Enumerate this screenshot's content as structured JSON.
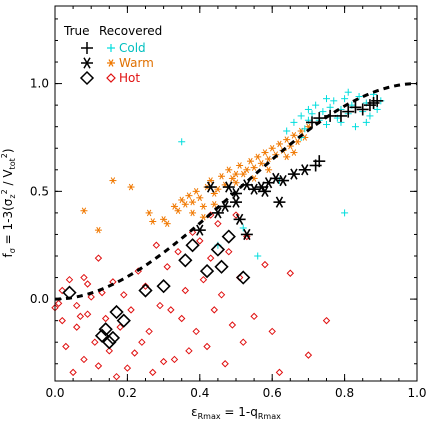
{
  "chart_data": {
    "type": "scatter",
    "xlabel": {
      "eps": "ε",
      "eps_sub": "Rmax",
      "rest": " = 1-q",
      "q_sub": "Rmax"
    },
    "ylabel": {
      "f": "f",
      "f_sub": "σ",
      "rest1": " = 1-3(σ",
      "z_sub": "z",
      "z_sup": "2",
      "rest2": " / V",
      "tot_sub": "tot",
      "tot_sup": "2",
      "rest3": ")"
    },
    "xlim": [
      0.0,
      1.0
    ],
    "ylim": [
      -0.38,
      1.36
    ],
    "xticks": [
      "0.0",
      "0.2",
      "0.4",
      "0.6",
      "0.8",
      "1.0"
    ],
    "yticks": [
      "0.0",
      "0.5",
      "1.0"
    ],
    "xtick_values": [
      0.0,
      0.2,
      0.4,
      0.6,
      0.8,
      1.0
    ],
    "ytick_values": [
      0.0,
      0.5,
      1.0
    ],
    "legend": {
      "header_true": "True",
      "header_recovered": "Recovered",
      "entries": [
        {
          "label": "Cold",
          "color": "#00dddd"
        },
        {
          "label": "Warm",
          "color": "#f07800"
        },
        {
          "label": "Hot",
          "color": "#e01010"
        }
      ]
    },
    "curve": {
      "style": "dashed",
      "color": "#000000"
    },
    "series": [
      {
        "name": "Cold",
        "role": "true",
        "marker": "plus",
        "color": "#000000",
        "points": [
          [
            0.71,
            0.82
          ],
          [
            0.73,
            0.84
          ],
          [
            0.76,
            0.85
          ],
          [
            0.79,
            0.85
          ],
          [
            0.81,
            0.87
          ],
          [
            0.83,
            0.89
          ],
          [
            0.85,
            0.88
          ],
          [
            0.87,
            0.9
          ],
          [
            0.88,
            0.91
          ],
          [
            0.89,
            0.92
          ],
          [
            0.72,
            0.62
          ],
          [
            0.73,
            0.64
          ]
        ]
      },
      {
        "name": "Cold",
        "role": "recovered",
        "marker": "plus",
        "color": "#00dddd",
        "points": [
          [
            0.35,
            0.73
          ],
          [
            0.64,
            0.78
          ],
          [
            0.66,
            0.82
          ],
          [
            0.68,
            0.85
          ],
          [
            0.69,
            0.79
          ],
          [
            0.7,
            0.88
          ],
          [
            0.71,
            0.86
          ],
          [
            0.72,
            0.9
          ],
          [
            0.73,
            0.83
          ],
          [
            0.74,
            0.87
          ],
          [
            0.75,
            0.81
          ],
          [
            0.76,
            0.89
          ],
          [
            0.77,
            0.92
          ],
          [
            0.78,
            0.84
          ],
          [
            0.79,
            0.88
          ],
          [
            0.8,
            0.93
          ],
          [
            0.81,
            0.86
          ],
          [
            0.82,
            0.9
          ],
          [
            0.83,
            0.8
          ],
          [
            0.84,
            0.94
          ],
          [
            0.85,
            0.87
          ],
          [
            0.86,
            0.91
          ],
          [
            0.87,
            0.85
          ],
          [
            0.88,
            0.95
          ],
          [
            0.89,
            0.88
          ],
          [
            0.9,
            0.92
          ],
          [
            0.86,
            0.82
          ],
          [
            0.81,
            0.96
          ],
          [
            0.75,
            0.93
          ],
          [
            0.7,
            0.83
          ],
          [
            0.68,
            0.75
          ],
          [
            0.62,
            0.55
          ],
          [
            0.8,
            0.4
          ],
          [
            0.56,
            0.2
          ],
          [
            0.45,
            0.25
          ],
          [
            0.52,
            0.33
          ],
          [
            0.79,
            0.82
          ]
        ]
      },
      {
        "name": "Warm",
        "role": "true",
        "marker": "asterisk",
        "color": "#000000",
        "points": [
          [
            0.43,
            0.52
          ],
          [
            0.48,
            0.52
          ],
          [
            0.5,
            0.49
          ],
          [
            0.53,
            0.53
          ],
          [
            0.55,
            0.51
          ],
          [
            0.57,
            0.52
          ],
          [
            0.59,
            0.54
          ],
          [
            0.61,
            0.56
          ],
          [
            0.63,
            0.55
          ],
          [
            0.66,
            0.58
          ],
          [
            0.69,
            0.6
          ],
          [
            0.47,
            0.43
          ],
          [
            0.5,
            0.45
          ],
          [
            0.51,
            0.37
          ],
          [
            0.45,
            0.4
          ],
          [
            0.58,
            0.5
          ],
          [
            0.62,
            0.45
          ],
          [
            0.4,
            0.32
          ],
          [
            0.53,
            0.3
          ]
        ]
      },
      {
        "name": "Warm",
        "role": "recovered",
        "marker": "asterisk",
        "color": "#f07800",
        "points": [
          [
            0.08,
            0.41
          ],
          [
            0.12,
            0.32
          ],
          [
            0.16,
            0.55
          ],
          [
            0.21,
            0.52
          ],
          [
            0.26,
            0.4
          ],
          [
            0.27,
            0.36
          ],
          [
            0.3,
            0.37
          ],
          [
            0.31,
            0.35
          ],
          [
            0.33,
            0.43
          ],
          [
            0.34,
            0.41
          ],
          [
            0.35,
            0.46
          ],
          [
            0.36,
            0.44
          ],
          [
            0.37,
            0.48
          ],
          [
            0.38,
            0.45
          ],
          [
            0.39,
            0.5
          ],
          [
            0.4,
            0.47
          ],
          [
            0.41,
            0.43
          ],
          [
            0.42,
            0.52
          ],
          [
            0.43,
            0.55
          ],
          [
            0.44,
            0.49
          ],
          [
            0.45,
            0.51
          ],
          [
            0.46,
            0.57
          ],
          [
            0.47,
            0.53
          ],
          [
            0.48,
            0.6
          ],
          [
            0.49,
            0.56
          ],
          [
            0.5,
            0.54
          ],
          [
            0.51,
            0.62
          ],
          [
            0.52,
            0.58
          ],
          [
            0.53,
            0.6
          ],
          [
            0.54,
            0.64
          ],
          [
            0.55,
            0.61
          ],
          [
            0.56,
            0.66
          ],
          [
            0.57,
            0.63
          ],
          [
            0.58,
            0.68
          ],
          [
            0.59,
            0.65
          ],
          [
            0.6,
            0.7
          ],
          [
            0.61,
            0.67
          ],
          [
            0.62,
            0.72
          ],
          [
            0.63,
            0.69
          ],
          [
            0.64,
            0.74
          ],
          [
            0.65,
            0.71
          ],
          [
            0.66,
            0.76
          ],
          [
            0.67,
            0.73
          ],
          [
            0.68,
            0.78
          ],
          [
            0.69,
            0.75
          ],
          [
            0.7,
            0.8
          ],
          [
            0.44,
            0.44
          ],
          [
            0.5,
            0.58
          ],
          [
            0.55,
            0.56
          ],
          [
            0.38,
            0.4
          ],
          [
            0.41,
            0.38
          ],
          [
            0.59,
            0.6
          ],
          [
            0.64,
            0.66
          ],
          [
            0.66,
            0.68
          ]
        ]
      },
      {
        "name": "Hot",
        "role": "true",
        "marker": "diamond",
        "color": "#000000",
        "points": [
          [
            0.04,
            0.03
          ],
          [
            0.13,
            -0.17
          ],
          [
            0.14,
            -0.14
          ],
          [
            0.15,
            -0.2
          ],
          [
            0.17,
            -0.06
          ],
          [
            0.19,
            -0.1
          ],
          [
            0.16,
            -0.18
          ],
          [
            0.25,
            0.04
          ],
          [
            0.3,
            0.06
          ],
          [
            0.36,
            0.18
          ],
          [
            0.38,
            0.25
          ],
          [
            0.42,
            0.13
          ],
          [
            0.45,
            0.23
          ],
          [
            0.46,
            0.15
          ],
          [
            0.48,
            0.29
          ],
          [
            0.52,
            0.1
          ]
        ]
      },
      {
        "name": "Hot",
        "role": "recovered",
        "marker": "diamond",
        "color": "#e01010",
        "points": [
          [
            0.01,
            -0.02
          ],
          [
            0.02,
            -0.1
          ],
          [
            0.03,
            -0.22
          ],
          [
            0.04,
            0.09
          ],
          [
            0.05,
            -0.34
          ],
          [
            0.06,
            -0.03
          ],
          [
            0.07,
            -0.08
          ],
          [
            0.08,
            -0.28
          ],
          [
            0.09,
            0.07
          ],
          [
            0.1,
            0.01
          ],
          [
            0.11,
            -0.2
          ],
          [
            0.12,
            -0.31
          ],
          [
            0.13,
            0.03
          ],
          [
            0.14,
            -0.09
          ],
          [
            0.15,
            -0.24
          ],
          [
            0.16,
            0.08
          ],
          [
            0.17,
            -0.36
          ],
          [
            0.18,
            -0.13
          ],
          [
            0.19,
            0.02
          ],
          [
            0.2,
            -0.32
          ],
          [
            0.21,
            -0.05
          ],
          [
            0.22,
            -0.25
          ],
          [
            0.23,
            0.13
          ],
          [
            0.24,
            -0.2
          ],
          [
            0.25,
            0.06
          ],
          [
            0.26,
            -0.15
          ],
          [
            0.27,
            -0.34
          ],
          [
            0.28,
            0.25
          ],
          [
            0.29,
            -0.03
          ],
          [
            0.3,
            -0.29
          ],
          [
            0.31,
            0.15
          ],
          [
            0.32,
            -0.05
          ],
          [
            0.33,
            -0.28
          ],
          [
            0.34,
            0.22
          ],
          [
            0.35,
            -0.09
          ],
          [
            0.36,
            0.04
          ],
          [
            0.37,
            -0.24
          ],
          [
            0.38,
            0.31
          ],
          [
            0.39,
            -0.15
          ],
          [
            0.4,
            0.27
          ],
          [
            0.41,
            0.09
          ],
          [
            0.42,
            -0.22
          ],
          [
            0.43,
            0.19
          ],
          [
            0.44,
            -0.05
          ],
          [
            0.45,
            0.35
          ],
          [
            0.46,
            0.02
          ],
          [
            0.47,
            -0.3
          ],
          [
            0.48,
            0.22
          ],
          [
            0.49,
            -0.12
          ],
          [
            0.5,
            0.39
          ],
          [
            0.51,
            0.1
          ],
          [
            0.52,
            -0.2
          ],
          [
            0.53,
            0.29
          ],
          [
            0.55,
            -0.08
          ],
          [
            0.58,
            0.16
          ],
          [
            0.6,
            -0.15
          ],
          [
            0.62,
            -0.34
          ],
          [
            0.65,
            0.12
          ],
          [
            0.7,
            -0.26
          ],
          [
            0.75,
            -0.1
          ],
          [
            0.0,
            -0.04
          ],
          [
            0.12,
            0.19
          ],
          [
            0.09,
            -0.07
          ],
          [
            0.02,
            0.04
          ],
          [
            0.06,
            -0.13
          ],
          [
            0.08,
            0.1
          ],
          [
            0.43,
            0.39
          ]
        ]
      }
    ]
  }
}
